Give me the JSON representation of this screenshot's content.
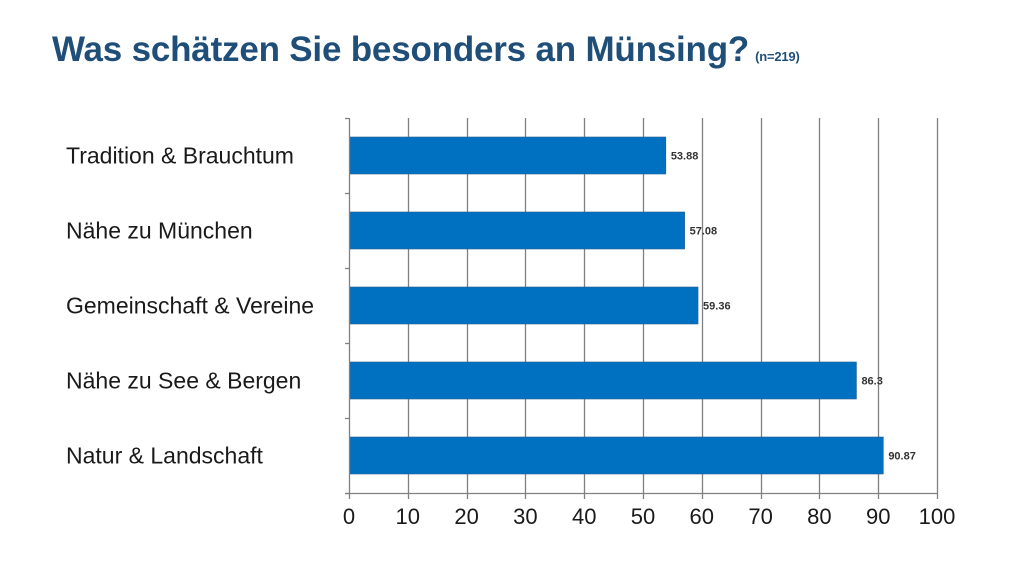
{
  "header": {
    "title": "Was schätzen Sie besonders an Münsing?",
    "sample": "(n=219)"
  },
  "colors": {
    "title": "#1f4e79",
    "bar": "#0070c0",
    "grid": "#808080"
  },
  "chart_data": {
    "type": "bar",
    "orientation": "horizontal",
    "title": "Was schätzen Sie besonders an Münsing?",
    "subtitle": "(n=219)",
    "categories": [
      "Tradition & Brauchtum",
      "Nähe zu München",
      "Gemeinschaft & Vereine",
      "Nähe zu See & Bergen",
      "Natur & Landschaft"
    ],
    "values": [
      53.88,
      57.08,
      59.36,
      86.3,
      90.87
    ],
    "value_labels": [
      "53.88",
      "57.08",
      "59.36",
      "86.3",
      "90.87"
    ],
    "xlabel": "",
    "ylabel": "",
    "xlim": [
      0,
      100
    ],
    "xticks": [
      "0",
      "10",
      "20",
      "30",
      "40",
      "50",
      "60",
      "70",
      "80",
      "90",
      "100"
    ],
    "grid": true,
    "legend": "none"
  }
}
